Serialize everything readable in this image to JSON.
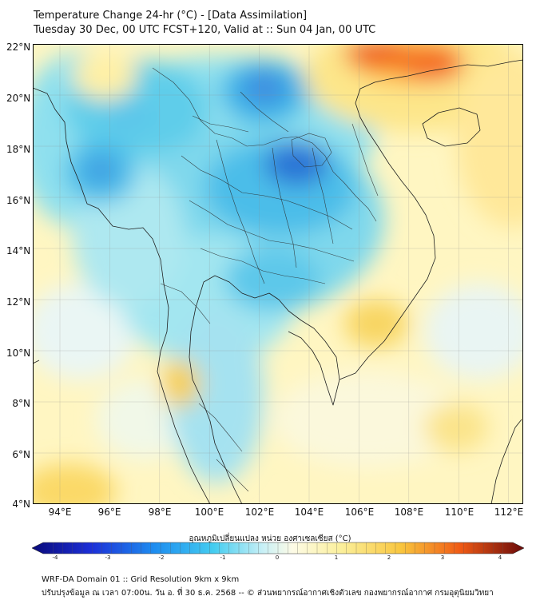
{
  "header": {
    "title_line1": "Temperature Change 24-hr (°C) - [Data Assimilation]",
    "title_line2": "Tuesday 30 Dec, 00 UTC FCST+120, Valid at :: Sun 04 Jan, 00 UTC"
  },
  "map": {
    "lat_labels": [
      "22°N",
      "20°N",
      "18°N",
      "16°N",
      "14°N",
      "12°N",
      "10°N",
      "8°N",
      "6°N",
      "4°N"
    ],
    "lon_labels": [
      "94°E",
      "96°E",
      "98°E",
      "100°E",
      "102°E",
      "104°E",
      "106°E",
      "108°E",
      "110°E",
      "112°E"
    ]
  },
  "colorbar": {
    "title": "อุณหภูมิเปลี่ยนแปลง หน่วย องศาเซลเซียส (°C)",
    "min": -4,
    "max": 4,
    "ticks": [
      "-4",
      "-3",
      "-2",
      "-1",
      "0",
      "1",
      "2",
      "3",
      "4"
    ]
  },
  "footer": {
    "line1": "WRF-DA Domain 01 :: Grid Resolution 9km x 9km",
    "line2": "ปรับปรุงข้อมูล ณ เวลา 07:00น. วัน อ. ที่ 30 ธ.ค. 2568 -- © ส่วนพยากรณ์อากาศเชิงตัวเลข กองพยากรณ์อากาศ กรมอุตุนิยมวิทยา"
  }
}
